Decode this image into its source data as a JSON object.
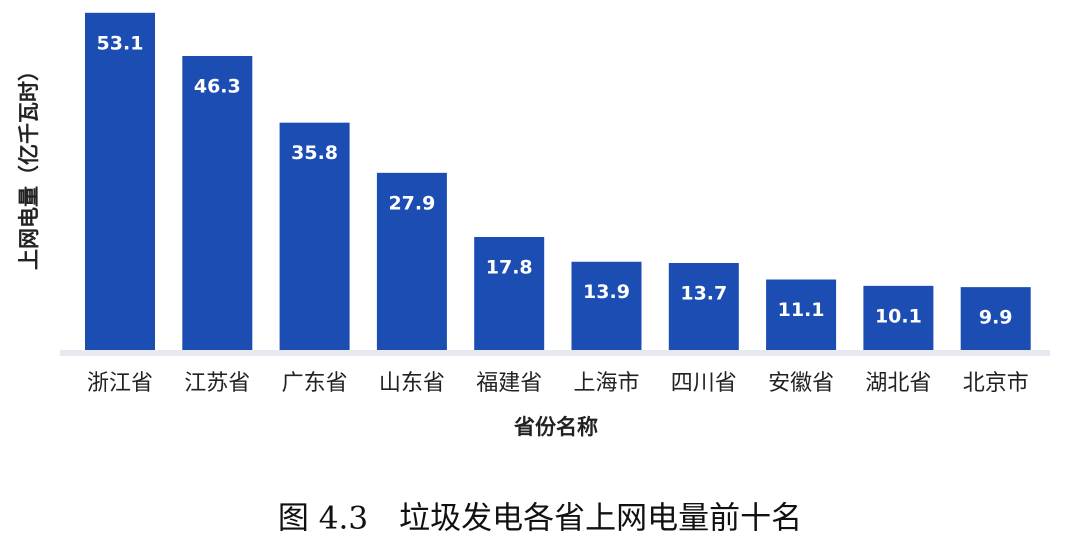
{
  "chart_data": {
    "type": "bar",
    "y_label": "上网电量（亿千瓦时）",
    "x_label": "省份名称",
    "caption": "图 4.3　垃圾发电各省上网电量前十名",
    "categories": [
      "浙江省",
      "江苏省",
      "广东省",
      "山东省",
      "福建省",
      "上海市",
      "四川省",
      "安徽省",
      "湖北省",
      "北京市"
    ],
    "values": [
      53.1,
      46.3,
      35.8,
      27.9,
      17.8,
      13.9,
      13.7,
      11.1,
      10.1,
      9.9
    ],
    "color": "#1b4db3"
  }
}
